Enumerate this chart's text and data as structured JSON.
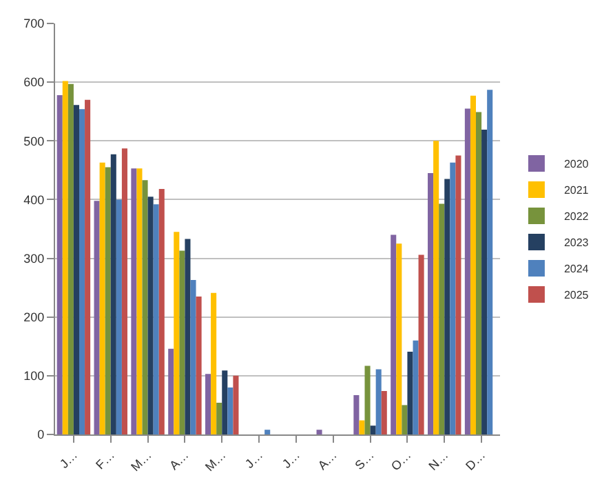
{
  "chart_data": {
    "type": "bar",
    "categories": [
      "J…",
      "F…",
      "M…",
      "A…",
      "M…",
      "J…",
      "J…",
      "A…",
      "S…",
      "O…",
      "N…",
      "D…"
    ],
    "series": [
      {
        "name": "2020",
        "color": "#8064a2",
        "values": [
          578,
          398,
          453,
          146,
          103,
          0,
          0,
          8,
          67,
          340,
          445,
          555
        ]
      },
      {
        "name": "2021",
        "color": "#ffc000",
        "values": [
          602,
          463,
          453,
          345,
          241,
          0,
          0,
          0,
          24,
          325,
          500,
          577
        ]
      },
      {
        "name": "2022",
        "color": "#77933c",
        "values": [
          597,
          455,
          433,
          313,
          54,
          0,
          0,
          0,
          117,
          50,
          393,
          549
        ]
      },
      {
        "name": "2023",
        "color": "#254061",
        "values": [
          561,
          477,
          405,
          333,
          109,
          0,
          0,
          0,
          15,
          141,
          435,
          519
        ]
      },
      {
        "name": "2024",
        "color": "#4f81bd",
        "values": [
          554,
          400,
          392,
          263,
          80,
          8,
          0,
          0,
          111,
          160,
          463,
          587
        ]
      },
      {
        "name": "2025",
        "color": "#c0504d",
        "values": [
          570,
          487,
          418,
          235,
          100,
          0,
          0,
          0,
          74,
          306,
          475,
          null
        ]
      }
    ],
    "ylim": [
      0,
      700
    ],
    "yticks": [
      0,
      100,
      200,
      300,
      400,
      500,
      600,
      700
    ],
    "grid": "y",
    "legend": "right"
  }
}
